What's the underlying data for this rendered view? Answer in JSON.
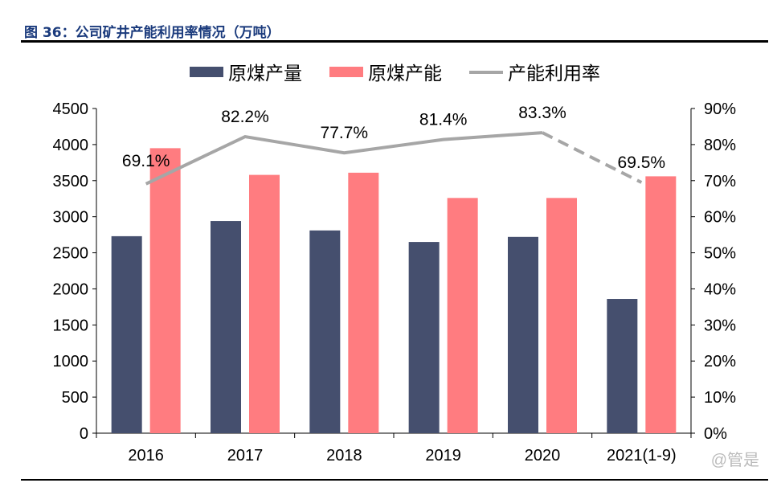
{
  "title": "图 36：公司矿井产能利用率情况（万吨）",
  "watermark": "@管是",
  "chart_data": {
    "type": "bar+line",
    "categories": [
      "2016",
      "2017",
      "2018",
      "2019",
      "2020",
      "2021(1-9)"
    ],
    "series": [
      {
        "name": "原煤产量",
        "type": "bar",
        "axis": "left",
        "color": "#454f6e",
        "values": [
          2730,
          2940,
          2810,
          2650,
          2720,
          1860
        ]
      },
      {
        "name": "原煤产能",
        "type": "bar",
        "axis": "left",
        "color": "#ff7c80",
        "values": [
          3950,
          3580,
          3610,
          3260,
          3260,
          3560
        ]
      },
      {
        "name": "产能利用率",
        "type": "line",
        "axis": "right",
        "color": "#a6a6a6",
        "values": [
          69.1,
          82.2,
          77.7,
          81.4,
          83.3,
          69.5
        ],
        "labels": [
          "69.1%",
          "82.2%",
          "77.7%",
          "81.4%",
          "83.3%",
          "69.5%"
        ],
        "dashed_last_segment": true
      }
    ],
    "ylim_left": [
      0,
      4500
    ],
    "yticks_left": [
      "0",
      "500",
      "1000",
      "1500",
      "2000",
      "2500",
      "3000",
      "3500",
      "4000",
      "4500"
    ],
    "ylim_right": [
      0,
      90
    ],
    "yticks_right": [
      "0%",
      "10%",
      "20%",
      "30%",
      "40%",
      "50%",
      "60%",
      "70%",
      "80%",
      "90%"
    ],
    "legend": "top",
    "grid": false
  }
}
